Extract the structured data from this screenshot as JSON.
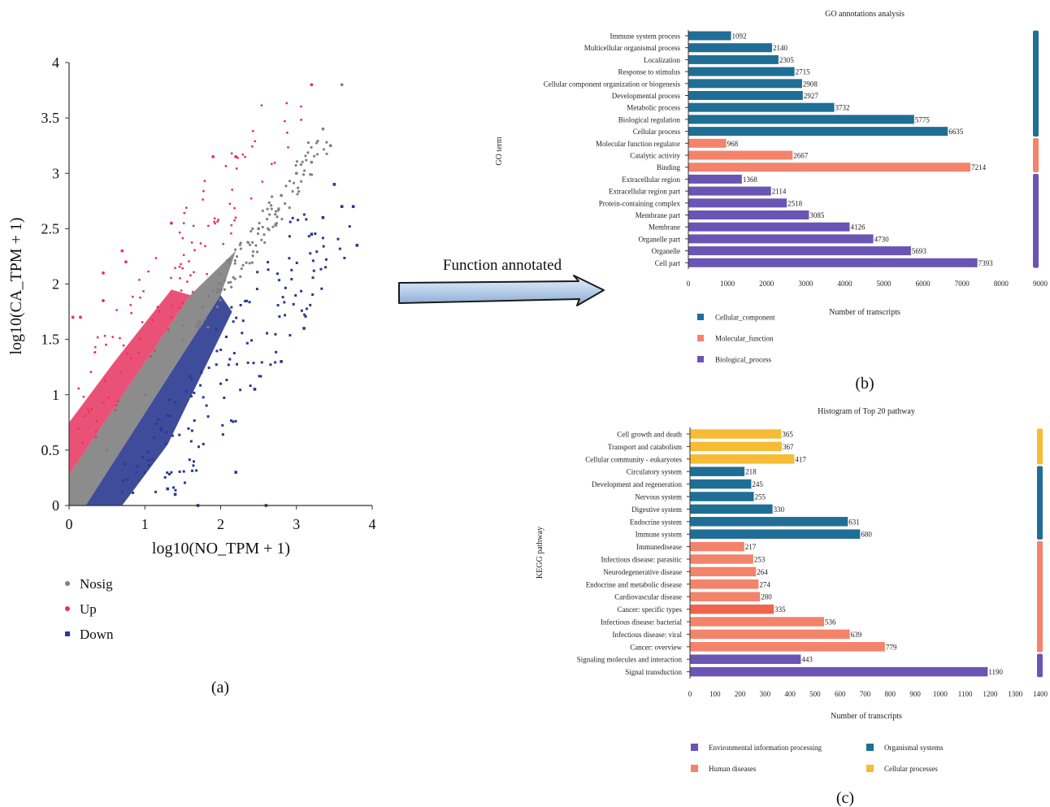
{
  "arrow_label": "Function annotated",
  "chart_data": [
    {
      "type": "scatter",
      "panel_label": "(a)",
      "xlabel": "log10(NO_TPM + 1)",
      "ylabel": "log10(CA_TPM + 1)",
      "xlim": [
        0,
        4
      ],
      "ylim": [
        0,
        4
      ],
      "xticks": [
        "0",
        "1",
        "2",
        "3",
        "4"
      ],
      "yticks": [
        "0",
        "0.5",
        "1",
        "1.5",
        "2",
        "2.5",
        "3",
        "3.5",
        "4"
      ],
      "grid": false,
      "legend_position": "bottom-left",
      "series": [
        {
          "name": "Nosig",
          "color": "#808080",
          "marker": "circle",
          "points": [
            [
              0.5,
              0.5
            ],
            [
              1,
              1
            ],
            [
              1.5,
              1.5
            ],
            [
              2,
              2
            ],
            [
              2.5,
              2.5
            ],
            [
              2.8,
              2.8
            ],
            [
              3,
              3
            ],
            [
              3.2,
              3.1
            ],
            [
              3.35,
              3.4
            ],
            [
              3.6,
              3.8
            ],
            [
              3.45,
              3.25
            ]
          ]
        },
        {
          "name": "Up",
          "color": "#e6325f",
          "marker": "circle",
          "points": [
            [
              0.05,
              1.7
            ],
            [
              0.15,
              1.7
            ],
            [
              0.45,
              2.1
            ],
            [
              0.45,
              1.85
            ],
            [
              0.7,
              2.3
            ],
            [
              0.75,
              2.2
            ],
            [
              1.35,
              2.55
            ],
            [
              1.9,
              3.15
            ],
            [
              2.2,
              3.15
            ],
            [
              3.2,
              3.8
            ]
          ]
        },
        {
          "name": "Down",
          "color": "#2a3990",
          "marker": "square",
          "points": [
            [
              1.7,
              0
            ],
            [
              1.4,
              0.1
            ],
            [
              1.3,
              0.15
            ],
            [
              2.2,
              0.3
            ],
            [
              2.6,
              0
            ],
            [
              2.45,
              1.05
            ],
            [
              2.8,
              1.3
            ],
            [
              3.1,
              1.6
            ],
            [
              3.2,
              2.45
            ],
            [
              3.35,
              2.6
            ],
            [
              3.5,
              2.9
            ],
            [
              3.75,
              2.7
            ],
            [
              3.8,
              2.35
            ],
            [
              3.6,
              2.7
            ]
          ]
        }
      ]
    },
    {
      "type": "bar",
      "orientation": "horizontal",
      "panel_label": "(b)",
      "title": "GO annotations analysis",
      "xlabel": "Number of transcripts",
      "ylabel": "GO term",
      "xlim": [
        0,
        9000
      ],
      "xticks": [
        "0",
        "1000",
        "2000",
        "3000",
        "4000",
        "5000",
        "6000",
        "7000",
        "8000",
        "9000"
      ],
      "grid": false,
      "legend_position": "bottom-left",
      "groups": [
        {
          "name": "Cellular_component",
          "color": "#1f6e96"
        },
        {
          "name": "Molecular_function",
          "color": "#f4836b"
        },
        {
          "name": "Biological_process",
          "color": "#6a55b5"
        }
      ],
      "categories": [
        "Immune system process",
        "Multicellular organismal process",
        "Localization",
        "Response to stimulus",
        "Cellular component organization or biogenesis",
        "Developmental process",
        "Metabolic process",
        "Biological regulation",
        "Cellular process",
        "Molecular function regulator",
        "Catalytic activity",
        "Binding",
        "Extracellular region",
        "Extracellular region part",
        "Protein-containing complex",
        "Membrane part",
        "Membrane",
        "Organelle part",
        "Organelle",
        "Cell part"
      ],
      "values": [
        1092,
        2140,
        2305,
        2715,
        2908,
        2927,
        3732,
        5775,
        6635,
        968,
        2667,
        7214,
        1368,
        2114,
        2518,
        3085,
        4126,
        4730,
        5693,
        7393
      ],
      "value_labels": [
        "1092",
        "2140",
        "2305",
        "2715",
        "2908",
        "2927",
        "3732",
        "5775",
        "6635",
        "968",
        "2667",
        "7214",
        "1368",
        "2114",
        "2518",
        "3085",
        "4126",
        "4730",
        "5693",
        "7393"
      ],
      "group_index": [
        0,
        0,
        0,
        0,
        0,
        0,
        0,
        0,
        0,
        1,
        1,
        1,
        2,
        2,
        2,
        2,
        2,
        2,
        2,
        2
      ]
    },
    {
      "type": "bar",
      "orientation": "horizontal",
      "panel_label": "(c)",
      "title": "Histogram of Top 20 pathway",
      "xlabel": "Number of transcripts",
      "ylabel": "KEGG pathway",
      "xlim": [
        0,
        1400
      ],
      "xticks": [
        "0",
        "100",
        "200",
        "300",
        "400",
        "500",
        "600",
        "700",
        "800",
        "900",
        "1000",
        "1100",
        "1200",
        "1300",
        "1400"
      ],
      "grid": false,
      "legend_position": "bottom-center",
      "groups": [
        {
          "name": "Environmental information processing",
          "color": "#6a55b5"
        },
        {
          "name": "Organismal systems",
          "color": "#1f6e96"
        },
        {
          "name": "Human diseases",
          "color": "#f4836b"
        },
        {
          "name": "Cellular processes",
          "color": "#f7bc33"
        }
      ],
      "categories": [
        "Cell growth and death",
        "Transport and catabolism",
        "Cellular community - eukaryotes",
        "Circulatory system",
        "Development and regeneration",
        "Nervous system",
        "Digestive system",
        "Endocrine system",
        "Immune system",
        "Immunedisease",
        "Infectious disease: parasitic",
        "Neurodegenerative disease",
        "Endocrine and metabolic disease",
        "Cardiovascular disease",
        "Cancer: specific types",
        "Infectious disease: bacterial",
        "Infectious disease: viral",
        "Cancer: overview",
        "Signaling molecules and interaction",
        "Signal transduction"
      ],
      "values": [
        365,
        367,
        417,
        218,
        245,
        255,
        330,
        631,
        680,
        217,
        253,
        264,
        274,
        280,
        335,
        536,
        639,
        779,
        443,
        1190
      ],
      "value_labels": [
        "365",
        "367",
        "417",
        "218",
        "245",
        "255",
        "330",
        "631",
        "680",
        "217",
        "253",
        "264",
        "274",
        "280",
        "335",
        "536",
        "639",
        "779",
        "443",
        "1190"
      ],
      "group_index": [
        3,
        3,
        3,
        1,
        1,
        1,
        1,
        1,
        1,
        2,
        2,
        2,
        2,
        2,
        2,
        2,
        2,
        2,
        0,
        0
      ],
      "highlight_color": "#f0634c",
      "highlight_index": 14
    }
  ]
}
